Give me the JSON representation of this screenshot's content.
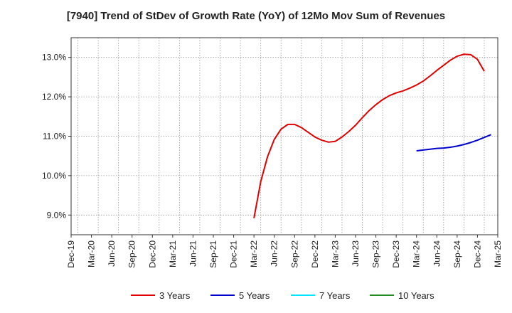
{
  "chart_data": {
    "type": "line",
    "title": "[7940]  Trend of StDev of Growth Rate (YoY) of 12Mo Mov Sum of Revenues",
    "xlabel": "",
    "ylabel": "",
    "ylim": [
      8.5,
      13.5
    ],
    "y_ticks": [
      9.0,
      10.0,
      11.0,
      12.0,
      13.0
    ],
    "y_tick_labels": [
      "9.0%",
      "10.0%",
      "11.0%",
      "12.0%",
      "13.0%"
    ],
    "x_tick_labels": [
      "Dec-19",
      "Mar-20",
      "Jun-20",
      "Sep-20",
      "Dec-20",
      "Mar-21",
      "Jun-21",
      "Sep-21",
      "Dec-21",
      "Mar-22",
      "Jun-22",
      "Sep-22",
      "Dec-22",
      "Mar-23",
      "Jun-23",
      "Sep-23",
      "Dec-23",
      "Mar-24",
      "Jun-24",
      "Sep-24",
      "Dec-24",
      "Mar-25"
    ],
    "x_start": "2019-12",
    "x_count_months": 63,
    "grid": true,
    "legend_position": "bottom",
    "series": [
      {
        "name": "3 Years",
        "color": "#e00000",
        "start_month_index": 27,
        "values": [
          8.92,
          9.85,
          10.48,
          10.92,
          11.18,
          11.3,
          11.3,
          11.22,
          11.1,
          10.98,
          10.9,
          10.85,
          10.87,
          10.98,
          11.12,
          11.28,
          11.47,
          11.65,
          11.8,
          11.93,
          12.03,
          12.1,
          12.15,
          12.22,
          12.3,
          12.4,
          12.53,
          12.67,
          12.8,
          12.93,
          13.03,
          13.08,
          13.07,
          12.95,
          12.65
        ]
      },
      {
        "name": "5 Years",
        "color": "#0000cc",
        "start_month_index": 51,
        "values": [
          10.63,
          10.65,
          10.67,
          10.69,
          10.7,
          10.72,
          10.75,
          10.79,
          10.84,
          10.9,
          10.97,
          11.04
        ]
      },
      {
        "name": "7 Years",
        "color": "#00e5ff",
        "start_month_index": null,
        "values": []
      },
      {
        "name": "10 Years",
        "color": "#228b22",
        "start_month_index": null,
        "values": []
      }
    ]
  }
}
